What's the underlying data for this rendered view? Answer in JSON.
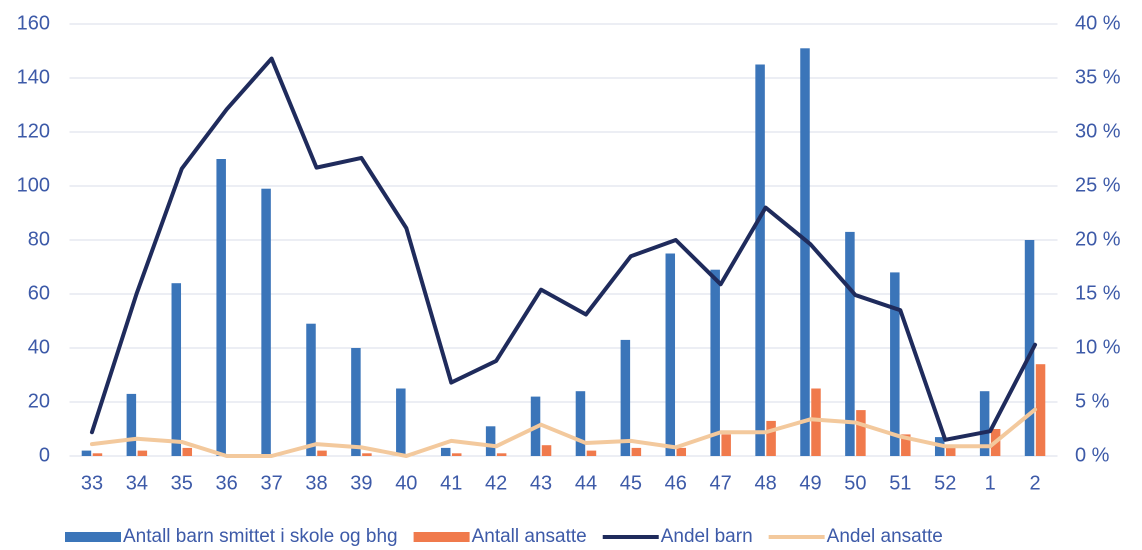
{
  "chart_data": {
    "type": "bar-line",
    "categories": [
      "33",
      "34",
      "35",
      "36",
      "37",
      "38",
      "39",
      "40",
      "41",
      "42",
      "43",
      "44",
      "45",
      "46",
      "47",
      "48",
      "49",
      "50",
      "51",
      "52",
      "1",
      "2"
    ],
    "series": [
      {
        "name": "Antall barn smittet i skole og bhg",
        "color": "#3b75b9",
        "kind": "bar",
        "axis": "y",
        "values": [
          2,
          23,
          64,
          110,
          99,
          49,
          40,
          25,
          3,
          11,
          22,
          24,
          43,
          75,
          69,
          145,
          151,
          83,
          68,
          7,
          24,
          80
        ]
      },
      {
        "name": "Antall ansatte",
        "color": "#f07a4c",
        "kind": "bar",
        "axis": "y",
        "values": [
          1,
          2,
          3,
          0,
          0,
          2,
          1,
          0,
          1,
          1,
          4,
          2,
          3,
          3,
          8,
          13,
          25,
          17,
          8,
          3,
          10,
          34
        ]
      },
      {
        "name": "Andel barn",
        "color": "#1f2b5c",
        "kind": "line",
        "axis": "y2",
        "values": [
          2.2,
          15.1,
          26.6,
          32.1,
          36.8,
          26.7,
          27.6,
          21.1,
          6.8,
          8.8,
          15.4,
          13.1,
          18.5,
          20,
          15.9,
          23,
          19.6,
          14.9,
          13.5,
          1.5,
          2.3,
          10.3
        ]
      },
      {
        "name": "Andel ansatte",
        "color": "#f3c99d",
        "kind": "line",
        "axis": "y2",
        "values": [
          1.1,
          1.6,
          1.3,
          0,
          0,
          1.1,
          0.8,
          0,
          1.4,
          0.9,
          2.9,
          1.2,
          1.4,
          0.8,
          2.2,
          2.2,
          3.4,
          3.1,
          1.8,
          0.9,
          0.9,
          4.3
        ]
      }
    ],
    "ylim": [
      0,
      160
    ],
    "yticks": [
      0,
      20,
      40,
      60,
      80,
      100,
      120,
      140,
      160
    ],
    "y2lim": [
      0,
      40
    ],
    "y2ticks": [
      {
        "value": 0,
        "label": "0 %"
      },
      {
        "value": 5,
        "label": "5 %"
      },
      {
        "value": 10,
        "label": "10 %"
      },
      {
        "value": 15,
        "label": "15 %"
      },
      {
        "value": 20,
        "label": "20 %"
      },
      {
        "value": 25,
        "label": "25 %"
      },
      {
        "value": 30,
        "label": "30 %"
      },
      {
        "value": 35,
        "label": "35 %"
      },
      {
        "value": 40,
        "label": "40 %"
      }
    ],
    "grid": true,
    "legend": "bottom"
  }
}
